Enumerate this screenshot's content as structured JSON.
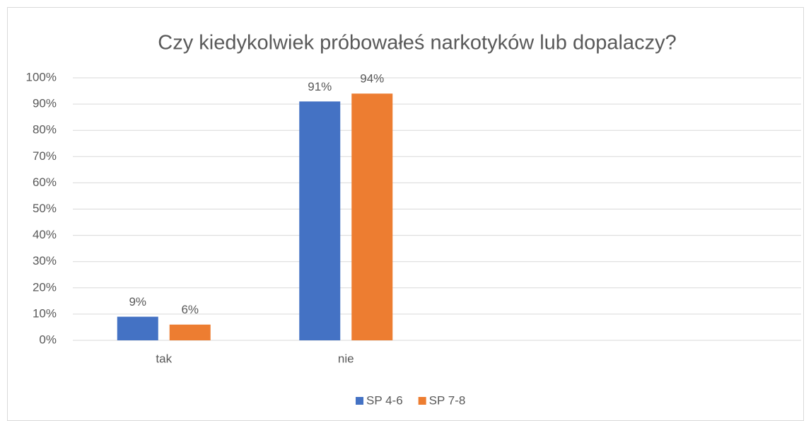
{
  "chart_data": {
    "type": "bar",
    "title": "Czy kiedykolwiek próbowałeś narkotyków lub dopalaczy?",
    "categories": [
      "tak",
      "nie",
      null,
      null
    ],
    "series": [
      {
        "name": "SP 4-6",
        "color": "#4472c4",
        "values": [
          9,
          91,
          null,
          null
        ],
        "value_labels": [
          "9%",
          "91%",
          null,
          null
        ]
      },
      {
        "name": "SP 7-8",
        "color": "#ed7d31",
        "values": [
          6,
          94,
          null,
          null
        ],
        "value_labels": [
          "6%",
          "94%",
          null,
          null
        ]
      }
    ],
    "ylim": [
      0,
      100
    ],
    "yticks": [
      {
        "value": 0,
        "label": "0%"
      },
      {
        "value": 10,
        "label": "10%"
      },
      {
        "value": 20,
        "label": "20%"
      },
      {
        "value": 30,
        "label": "30%"
      },
      {
        "value": 40,
        "label": "40%"
      },
      {
        "value": 50,
        "label": "50%"
      },
      {
        "value": 60,
        "label": "60%"
      },
      {
        "value": 70,
        "label": "70%"
      },
      {
        "value": 80,
        "label": "80%"
      },
      {
        "value": 90,
        "label": "90%"
      },
      {
        "value": 100,
        "label": "100%"
      }
    ],
    "grid": true,
    "legend": "bottom"
  }
}
